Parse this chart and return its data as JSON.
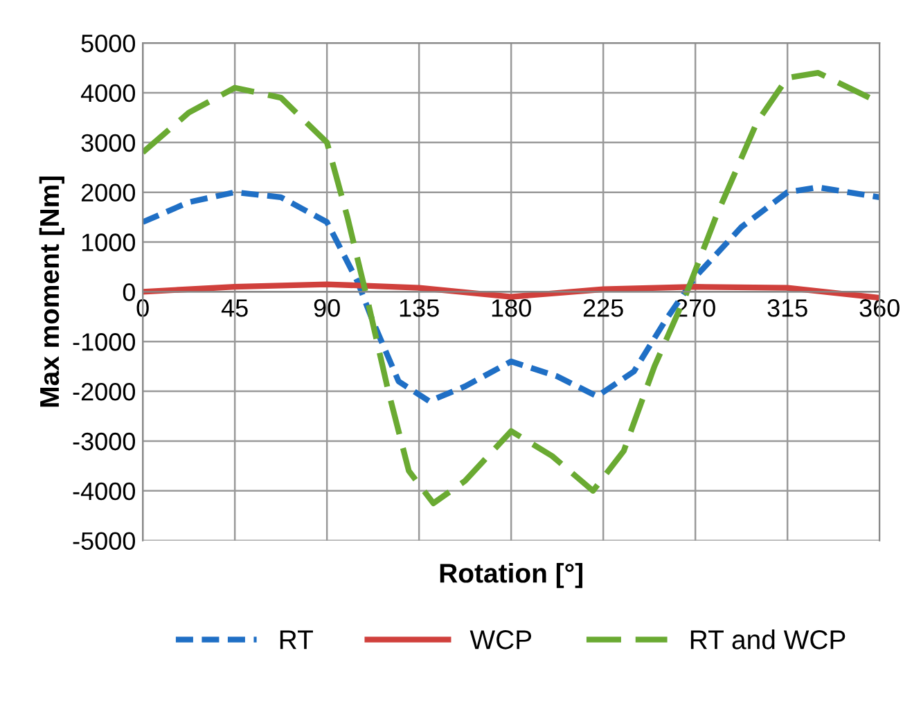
{
  "chart_data": {
    "type": "line",
    "xlabel": "Rotation [°]",
    "ylabel": "Max moment [Nm]",
    "xlim": [
      0,
      360
    ],
    "xticks": [
      0,
      45,
      90,
      135,
      180,
      225,
      270,
      315,
      360
    ],
    "ylim": [
      -5000,
      5000
    ],
    "yticks": [
      -5000,
      -4000,
      -3000,
      -2000,
      -1000,
      0,
      1000,
      2000,
      3000,
      4000,
      5000
    ],
    "grid": true,
    "legend": "bottom",
    "marker": "none",
    "series": [
      {
        "name": "RT",
        "color": "#1f6fc5",
        "line_style": "dashed",
        "x": [
          0,
          22.5,
          45,
          67.5,
          90,
          105,
          112.5,
          125,
          140,
          157.5,
          180,
          202.5,
          222,
          240,
          255,
          270,
          292.5,
          315,
          330,
          360
        ],
        "values": [
          1400,
          1800,
          2000,
          1900,
          1400,
          200,
          -600,
          -1800,
          -2200,
          -1900,
          -1400,
          -1700,
          -2100,
          -1600,
          -600,
          300,
          1300,
          2000,
          2100,
          1900
        ]
      },
      {
        "name": "WCP",
        "color": "#d0403c",
        "line_style": "solid",
        "x": [
          0,
          45,
          90,
          135,
          180,
          225,
          270,
          315,
          360
        ],
        "values": [
          0,
          100,
          150,
          80,
          -100,
          50,
          100,
          80,
          -120
        ]
      },
      {
        "name": "RT and WCP",
        "color": "#6aaa32",
        "line_style": "dashed",
        "x": [
          0,
          22.5,
          45,
          67.5,
          90,
          100,
          110,
          120,
          130,
          142,
          157.5,
          180,
          200,
          220,
          235,
          250,
          265,
          280,
          300,
          315,
          330,
          345,
          360
        ],
        "values": [
          2800,
          3600,
          4100,
          3900,
          3000,
          1500,
          -200,
          -2000,
          -3600,
          -4250,
          -3800,
          -2800,
          -3300,
          -4000,
          -3200,
          -1500,
          -100,
          1500,
          3400,
          4300,
          4400,
          4100,
          3800
        ]
      }
    ]
  }
}
